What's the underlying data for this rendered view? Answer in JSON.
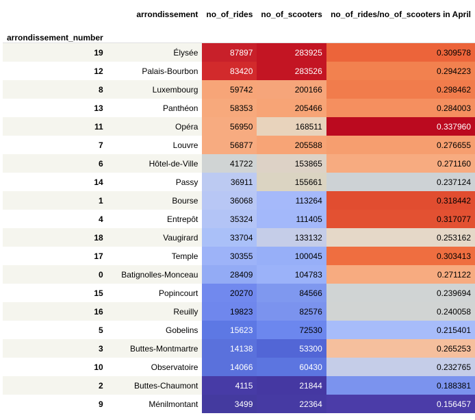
{
  "table": {
    "index_name": "arrondissement_number",
    "columns": [
      "arrondissement",
      "no_of_rides",
      "no_of_scooters",
      "no_of_rides/no_of_scooters in April"
    ],
    "rows": [
      {
        "index": "19",
        "name": "Élysée",
        "rides": "87897",
        "scooters": "283925",
        "ratio": "0.309578",
        "colors": [
          "#c8202a",
          "#c31523",
          "#ec643a"
        ],
        "text": [
          "#ffffff",
          "#ffffff",
          "#000000"
        ]
      },
      {
        "index": "12",
        "name": "Palais-Bourbon",
        "rides": "83420",
        "scooters": "283526",
        "ratio": "0.294223",
        "colors": [
          "#d22a2c",
          "#c31523",
          "#f2814f"
        ],
        "text": [
          "#ffffff",
          "#ffffff",
          "#000000"
        ]
      },
      {
        "index": "8",
        "name": "Luxembourg",
        "rides": "59742",
        "scooters": "200166",
        "ratio": "0.298462",
        "colors": [
          "#f7a578",
          "#f6a57a",
          "#f17c4c"
        ],
        "text": [
          "#000000",
          "#000000",
          "#000000"
        ]
      },
      {
        "index": "13",
        "name": "Panthéon",
        "rides": "58353",
        "scooters": "205466",
        "ratio": "0.284003",
        "colors": [
          "#f7a97c",
          "#f7a476",
          "#f58f5f"
        ],
        "text": [
          "#000000",
          "#000000",
          "#000000"
        ]
      },
      {
        "index": "11",
        "name": "Opéra",
        "rides": "56950",
        "scooters": "168511",
        "ratio": "0.337960",
        "colors": [
          "#f7ab80",
          "#e8d3bc",
          "#bb0a1f"
        ],
        "text": [
          "#000000",
          "#000000",
          "#ffffff"
        ]
      },
      {
        "index": "7",
        "name": "Louvre",
        "rides": "56877",
        "scooters": "205588",
        "ratio": "0.276655",
        "colors": [
          "#f7ab80",
          "#f7a476",
          "#f69e6f"
        ],
        "text": [
          "#000000",
          "#000000",
          "#000000"
        ]
      },
      {
        "index": "6",
        "name": "Hôtel-de-Ville",
        "rides": "41722",
        "scooters": "153865",
        "ratio": "0.271160",
        "colors": [
          "#d0d4d4",
          "#ddd2c6",
          "#f7ab80"
        ],
        "text": [
          "#000000",
          "#000000",
          "#000000"
        ]
      },
      {
        "index": "14",
        "name": "Passy",
        "rides": "36911",
        "scooters": "155661",
        "ratio": "0.237124",
        "colors": [
          "#bccaf2",
          "#dbd4c2",
          "#cdd2d5"
        ],
        "text": [
          "#000000",
          "#000000",
          "#000000"
        ]
      },
      {
        "index": "1",
        "name": "Bourse",
        "rides": "36068",
        "scooters": "113264",
        "ratio": "0.318442",
        "colors": [
          "#b8c7f5",
          "#a5b9fa",
          "#e14d30"
        ],
        "text": [
          "#000000",
          "#000000",
          "#000000"
        ]
      },
      {
        "index": "4",
        "name": "Entrepôt",
        "rides": "35324",
        "scooters": "111405",
        "ratio": "0.317077",
        "colors": [
          "#b3c4f6",
          "#a3b8fa",
          "#e35132"
        ],
        "text": [
          "#000000",
          "#000000",
          "#000000"
        ]
      },
      {
        "index": "18",
        "name": "Vaugirard",
        "rides": "33704",
        "scooters": "133132",
        "ratio": "0.253162",
        "colors": [
          "#aac0f8",
          "#c5cde8",
          "#e5d8c8"
        ],
        "text": [
          "#000000",
          "#000000",
          "#000000"
        ]
      },
      {
        "index": "17",
        "name": "Temple",
        "rides": "30355",
        "scooters": "100045",
        "ratio": "0.303413",
        "colors": [
          "#9db3f8",
          "#97aff8",
          "#ef6e40"
        ],
        "text": [
          "#000000",
          "#000000",
          "#000000"
        ]
      },
      {
        "index": "0",
        "name": "Batignolles-Monceau",
        "rides": "28409",
        "scooters": "104783",
        "ratio": "0.271122",
        "colors": [
          "#93abf5",
          "#9bb2f9",
          "#f7ab80"
        ],
        "text": [
          "#000000",
          "#000000",
          "#000000"
        ]
      },
      {
        "index": "15",
        "name": "Popincourt",
        "rides": "20270",
        "scooters": "84566",
        "ratio": "0.239694",
        "colors": [
          "#7189ee",
          "#7f98ef",
          "#d0d4d4"
        ],
        "text": [
          "#000000",
          "#000000",
          "#000000"
        ]
      },
      {
        "index": "16",
        "name": "Reuilly",
        "rides": "19823",
        "scooters": "82576",
        "ratio": "0.240058",
        "colors": [
          "#6f87ed",
          "#7b93ee",
          "#d1d4d3"
        ],
        "text": [
          "#000000",
          "#000000",
          "#000000"
        ]
      },
      {
        "index": "5",
        "name": "Gobelins",
        "rides": "15623",
        "scooters": "72530",
        "ratio": "0.215401",
        "colors": [
          "#5d78e4",
          "#6c87ee",
          "#a7bcfa"
        ],
        "text": [
          "#ffffff",
          "#000000",
          "#000000"
        ]
      },
      {
        "index": "3",
        "name": "Buttes-Montmartre",
        "rides": "14138",
        "scooters": "53300",
        "ratio": "0.265253",
        "colors": [
          "#5a71dc",
          "#5266d6",
          "#f5bf9d"
        ],
        "text": [
          "#ffffff",
          "#ffffff",
          "#000000"
        ]
      },
      {
        "index": "10",
        "name": "Observatoire",
        "rides": "14066",
        "scooters": "60430",
        "ratio": "0.232765",
        "colors": [
          "#5a71dc",
          "#5c75e0",
          "#c5cde8"
        ],
        "text": [
          "#ffffff",
          "#ffffff",
          "#000000"
        ]
      },
      {
        "index": "2",
        "name": "Buttes-Chaumont",
        "rides": "4115",
        "scooters": "21844",
        "ratio": "0.188381",
        "colors": [
          "#473ba6",
          "#4538a2",
          "#7b93ee"
        ],
        "text": [
          "#ffffff",
          "#ffffff",
          "#000000"
        ]
      },
      {
        "index": "9",
        "name": "Ménilmontant",
        "rides": "3499",
        "scooters": "22364",
        "ratio": "0.156457",
        "colors": [
          "#443a9f",
          "#463aa3",
          "#4b3ca8"
        ],
        "text": [
          "#ffffff",
          "#ffffff",
          "#ffffff"
        ]
      }
    ]
  }
}
